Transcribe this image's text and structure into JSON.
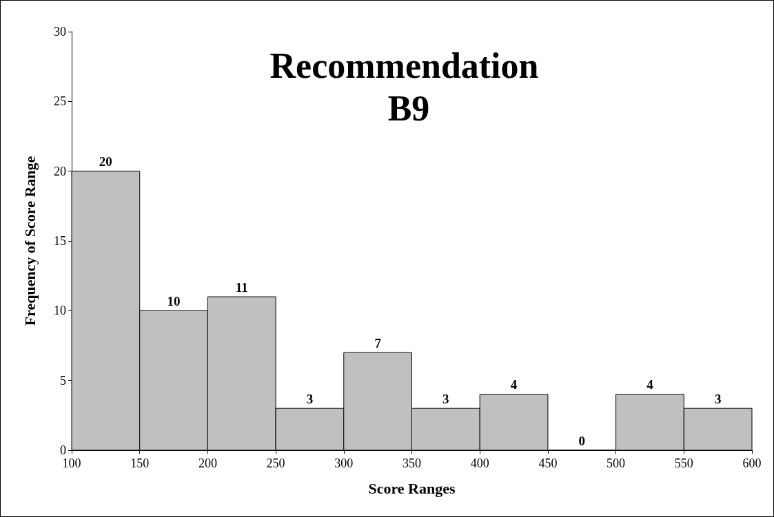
{
  "chart_data": {
    "type": "histogram",
    "title": "Recommendation B9",
    "xlabel": "Score Ranges",
    "ylabel": "Frequency of Score Range",
    "bins": [
      100,
      150,
      200,
      250,
      300,
      350,
      400,
      450,
      500,
      550,
      600
    ],
    "values": [
      20,
      10,
      11,
      3,
      7,
      3,
      4,
      0,
      4,
      3
    ],
    "color": "#c0c0c0",
    "data_labels": true,
    "grid": false,
    "xlim": [
      100,
      600
    ],
    "xticks": [
      100,
      150,
      200,
      250,
      300,
      350,
      400,
      450,
      500,
      550,
      600
    ],
    "ylim": [
      0,
      30
    ],
    "yticks": [
      0,
      5,
      10,
      15,
      20,
      25,
      30
    ]
  }
}
